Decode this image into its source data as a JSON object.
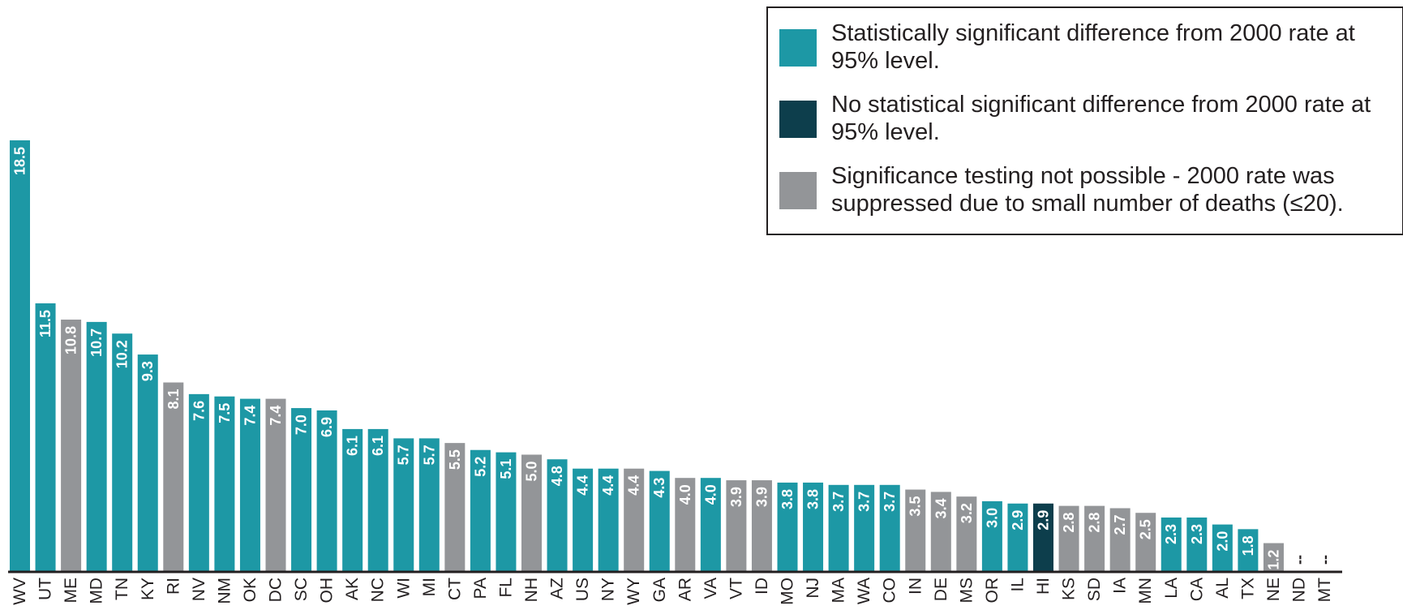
{
  "legend": [
    {
      "label": "Statistically significant difference from 2000 rate at 95% level.",
      "color": "#1d98a5"
    },
    {
      "label": "No statistical significant difference from 2000 rate at 95% level.",
      "color": "#0d3e4c"
    },
    {
      "label": "Significance testing not possible - 2000 rate was suppressed due to small number of deaths (≤20).",
      "color": "#939598"
    }
  ],
  "chart_data": {
    "type": "bar",
    "categories": [
      "WV",
      "UT",
      "ME",
      "MD",
      "TN",
      "KY",
      "RI",
      "NV",
      "NM",
      "OK",
      "DC",
      "SC",
      "OH",
      "AK",
      "NC",
      "WI",
      "MI",
      "CT",
      "PA",
      "FL",
      "NH",
      "AZ",
      "US",
      "NY",
      "WY",
      "GA",
      "AR",
      "VA",
      "VT",
      "ID",
      "MO",
      "NJ",
      "MA",
      "WA",
      "CO",
      "IN",
      "DE",
      "MS",
      "OR",
      "IL",
      "HI",
      "KS",
      "SD",
      "IA",
      "MN",
      "LA",
      "CA",
      "AL",
      "TX",
      "NE",
      "ND",
      "MT"
    ],
    "values": [
      18.5,
      11.5,
      10.8,
      10.7,
      10.2,
      9.3,
      8.1,
      7.6,
      7.5,
      7.4,
      7.4,
      7.0,
      6.9,
      6.1,
      6.1,
      5.7,
      5.7,
      5.5,
      5.2,
      5.1,
      5.0,
      4.8,
      4.4,
      4.4,
      4.4,
      4.3,
      4.0,
      4.0,
      3.9,
      3.9,
      3.8,
      3.8,
      3.7,
      3.7,
      3.7,
      3.5,
      3.4,
      3.2,
      3.0,
      2.9,
      2.9,
      2.8,
      2.8,
      2.7,
      2.5,
      2.3,
      2.3,
      2.0,
      1.8,
      1.2,
      null,
      null
    ],
    "labels": [
      "18.5",
      "11.5",
      "10.8",
      "10.7",
      "10.2",
      "9.3",
      "8.1",
      "7.6",
      "7.5",
      "7.4",
      "7.4",
      "7.0",
      "6.9",
      "6.1",
      "6.1",
      "5.7",
      "5.7",
      "5.5",
      "5.2",
      "5.1",
      "5.0",
      "4.8",
      "4.4",
      "4.4",
      "4.4",
      "4.3",
      "4.0",
      "4.0",
      "3.9",
      "3.9",
      "3.8",
      "3.8",
      "3.7",
      "3.7",
      "3.7",
      "3.5",
      "3.4",
      "3.2",
      "3.0",
      "2.9",
      "2.9",
      "2.8",
      "2.8",
      "2.7",
      "2.5",
      "2.3",
      "2.3",
      "2.0",
      "1.8",
      "1.2",
      "--",
      "--"
    ],
    "significance": [
      "sig",
      "sig",
      "supp",
      "sig",
      "sig",
      "sig",
      "supp",
      "sig",
      "sig",
      "sig",
      "supp",
      "sig",
      "sig",
      "sig",
      "sig",
      "sig",
      "sig",
      "supp",
      "sig",
      "sig",
      "supp",
      "sig",
      "sig",
      "sig",
      "supp",
      "sig",
      "supp",
      "sig",
      "supp",
      "supp",
      "sig",
      "sig",
      "sig",
      "sig",
      "sig",
      "supp",
      "supp",
      "supp",
      "sig",
      "sig",
      "nonsig",
      "supp",
      "supp",
      "supp",
      "supp",
      "sig",
      "sig",
      "sig",
      "sig",
      "supp",
      "none",
      "none"
    ],
    "colors": {
      "sig": "#1d98a5",
      "nonsig": "#0d3e4c",
      "supp": "#939598"
    },
    "ylim": [
      0,
      18.5
    ],
    "grid": false,
    "legend_position": "top-right"
  }
}
